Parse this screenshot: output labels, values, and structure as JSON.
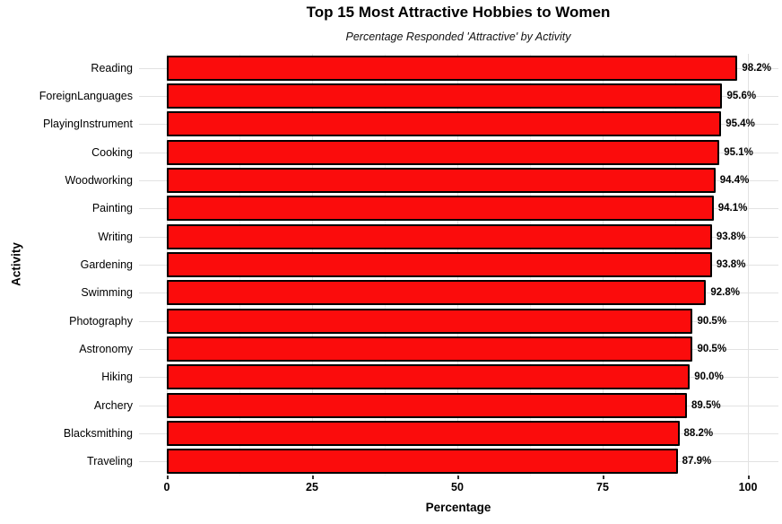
{
  "chart_data": {
    "type": "bar",
    "orientation": "horizontal",
    "title": "Top 15 Most Attractive Hobbies to Women",
    "subtitle": "Percentage Responded 'Attractive' by Activity",
    "xlabel": "Percentage",
    "ylabel": "Activity",
    "xlim": [
      0,
      100
    ],
    "x_ticks": [
      0,
      25,
      50,
      75,
      100
    ],
    "x_minor_ticks": [
      12.5,
      37.5,
      62.5,
      87.5
    ],
    "grid": true,
    "legend": "none",
    "bar_fill": "#fb0c0c",
    "bar_border": "#000000",
    "gridline_color": "#e2e2e2",
    "categories": [
      "Reading",
      "ForeignLanguages",
      "PlayingInstrument",
      "Cooking",
      "Woodworking",
      "Painting",
      "Writing",
      "Gardening",
      "Swimming",
      "Photography",
      "Astronomy",
      "Hiking",
      "Archery",
      "Blacksmithing",
      "Traveling"
    ],
    "values": [
      98.2,
      95.6,
      95.4,
      95.1,
      94.4,
      94.1,
      93.8,
      93.8,
      92.8,
      90.5,
      90.5,
      90.0,
      89.5,
      88.2,
      87.9
    ],
    "value_labels": [
      "98.2%",
      "95.6%",
      "95.4%",
      "95.1%",
      "94.4%",
      "94.1%",
      "93.8%",
      "93.8%",
      "92.8%",
      "90.5%",
      "90.5%",
      "90.0%",
      "89.5%",
      "88.2%",
      "87.9%"
    ]
  }
}
